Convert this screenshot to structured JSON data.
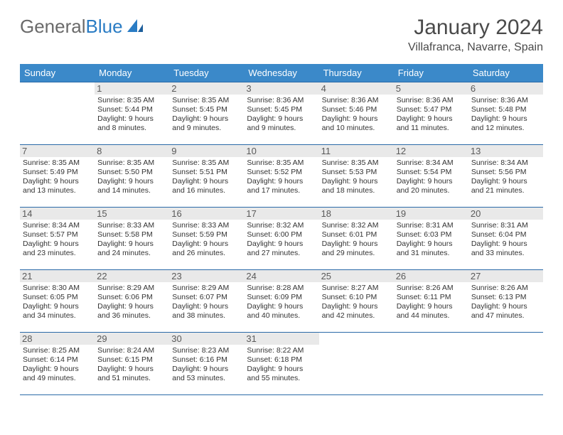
{
  "brand": {
    "part1": "General",
    "part2": "Blue"
  },
  "title": "January 2024",
  "location": "Villafranca, Navarre, Spain",
  "colors": {
    "header_bg": "#3b89c9",
    "header_text": "#ffffff",
    "daynum_bg": "#e9e9e9",
    "rule": "#2a6aa8",
    "logo_accent": "#2a7cc4",
    "body_text": "#333333"
  },
  "weekdays": [
    "Sunday",
    "Monday",
    "Tuesday",
    "Wednesday",
    "Thursday",
    "Friday",
    "Saturday"
  ],
  "weeks": [
    [
      null,
      {
        "n": "1",
        "sr": "8:35 AM",
        "ss": "5:44 PM",
        "dl": "9 hours and 8 minutes."
      },
      {
        "n": "2",
        "sr": "8:35 AM",
        "ss": "5:45 PM",
        "dl": "9 hours and 9 minutes."
      },
      {
        "n": "3",
        "sr": "8:36 AM",
        "ss": "5:45 PM",
        "dl": "9 hours and 9 minutes."
      },
      {
        "n": "4",
        "sr": "8:36 AM",
        "ss": "5:46 PM",
        "dl": "9 hours and 10 minutes."
      },
      {
        "n": "5",
        "sr": "8:36 AM",
        "ss": "5:47 PM",
        "dl": "9 hours and 11 minutes."
      },
      {
        "n": "6",
        "sr": "8:36 AM",
        "ss": "5:48 PM",
        "dl": "9 hours and 12 minutes."
      }
    ],
    [
      {
        "n": "7",
        "sr": "8:35 AM",
        "ss": "5:49 PM",
        "dl": "9 hours and 13 minutes."
      },
      {
        "n": "8",
        "sr": "8:35 AM",
        "ss": "5:50 PM",
        "dl": "9 hours and 14 minutes."
      },
      {
        "n": "9",
        "sr": "8:35 AM",
        "ss": "5:51 PM",
        "dl": "9 hours and 16 minutes."
      },
      {
        "n": "10",
        "sr": "8:35 AM",
        "ss": "5:52 PM",
        "dl": "9 hours and 17 minutes."
      },
      {
        "n": "11",
        "sr": "8:35 AM",
        "ss": "5:53 PM",
        "dl": "9 hours and 18 minutes."
      },
      {
        "n": "12",
        "sr": "8:34 AM",
        "ss": "5:54 PM",
        "dl": "9 hours and 20 minutes."
      },
      {
        "n": "13",
        "sr": "8:34 AM",
        "ss": "5:56 PM",
        "dl": "9 hours and 21 minutes."
      }
    ],
    [
      {
        "n": "14",
        "sr": "8:34 AM",
        "ss": "5:57 PM",
        "dl": "9 hours and 23 minutes."
      },
      {
        "n": "15",
        "sr": "8:33 AM",
        "ss": "5:58 PM",
        "dl": "9 hours and 24 minutes."
      },
      {
        "n": "16",
        "sr": "8:33 AM",
        "ss": "5:59 PM",
        "dl": "9 hours and 26 minutes."
      },
      {
        "n": "17",
        "sr": "8:32 AM",
        "ss": "6:00 PM",
        "dl": "9 hours and 27 minutes."
      },
      {
        "n": "18",
        "sr": "8:32 AM",
        "ss": "6:01 PM",
        "dl": "9 hours and 29 minutes."
      },
      {
        "n": "19",
        "sr": "8:31 AM",
        "ss": "6:03 PM",
        "dl": "9 hours and 31 minutes."
      },
      {
        "n": "20",
        "sr": "8:31 AM",
        "ss": "6:04 PM",
        "dl": "9 hours and 33 minutes."
      }
    ],
    [
      {
        "n": "21",
        "sr": "8:30 AM",
        "ss": "6:05 PM",
        "dl": "9 hours and 34 minutes."
      },
      {
        "n": "22",
        "sr": "8:29 AM",
        "ss": "6:06 PM",
        "dl": "9 hours and 36 minutes."
      },
      {
        "n": "23",
        "sr": "8:29 AM",
        "ss": "6:07 PM",
        "dl": "9 hours and 38 minutes."
      },
      {
        "n": "24",
        "sr": "8:28 AM",
        "ss": "6:09 PM",
        "dl": "9 hours and 40 minutes."
      },
      {
        "n": "25",
        "sr": "8:27 AM",
        "ss": "6:10 PM",
        "dl": "9 hours and 42 minutes."
      },
      {
        "n": "26",
        "sr": "8:26 AM",
        "ss": "6:11 PM",
        "dl": "9 hours and 44 minutes."
      },
      {
        "n": "27",
        "sr": "8:26 AM",
        "ss": "6:13 PM",
        "dl": "9 hours and 47 minutes."
      }
    ],
    [
      {
        "n": "28",
        "sr": "8:25 AM",
        "ss": "6:14 PM",
        "dl": "9 hours and 49 minutes."
      },
      {
        "n": "29",
        "sr": "8:24 AM",
        "ss": "6:15 PM",
        "dl": "9 hours and 51 minutes."
      },
      {
        "n": "30",
        "sr": "8:23 AM",
        "ss": "6:16 PM",
        "dl": "9 hours and 53 minutes."
      },
      {
        "n": "31",
        "sr": "8:22 AM",
        "ss": "6:18 PM",
        "dl": "9 hours and 55 minutes."
      },
      null,
      null,
      null
    ]
  ],
  "labels": {
    "sunrise": "Sunrise:",
    "sunset": "Sunset:",
    "daylight": "Daylight:"
  }
}
